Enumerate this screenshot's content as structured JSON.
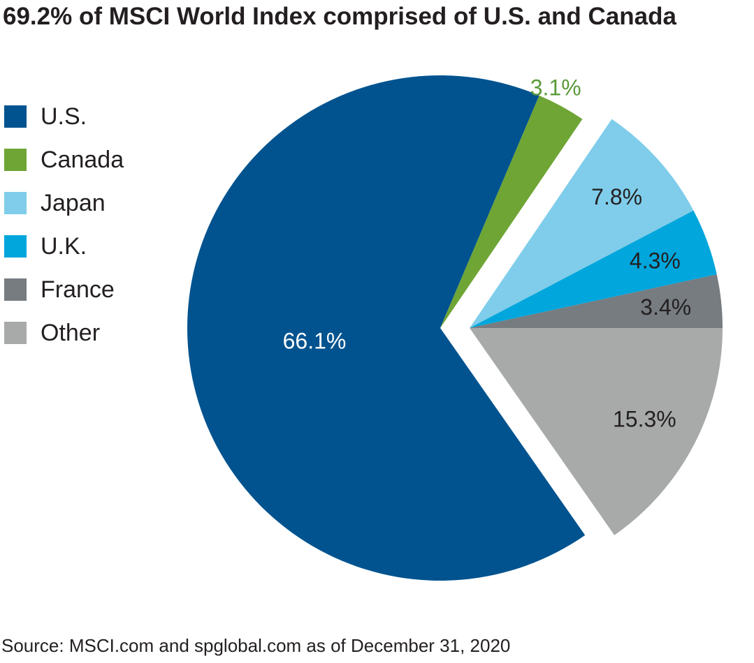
{
  "title": "69.2% of MSCI World Index comprised of U.S. and Canada",
  "source": "Source: MSCI.com and spglobal.com as of December 31, 2020",
  "chart_data": {
    "type": "pie",
    "title": "69.2% of MSCI World Index comprised of U.S. and Canada",
    "legend_position": "left",
    "slices": [
      {
        "name": "U.S.",
        "value": 66.1,
        "label": "66.1%",
        "color": "#00538f",
        "label_color": "#ffffff",
        "exploded": false
      },
      {
        "name": "Canada",
        "value": 3.1,
        "label": "3.1%",
        "color": "#6ea535",
        "label_color": "#5a9a3a",
        "exploded": false,
        "label_outside": true
      },
      {
        "name": "Japan",
        "value": 7.8,
        "label": "7.8%",
        "color": "#7fcdea",
        "label_color": "#231f20",
        "exploded": true
      },
      {
        "name": "U.K.",
        "value": 4.3,
        "label": "4.3%",
        "color": "#00a6dc",
        "label_color": "#231f20",
        "exploded": true
      },
      {
        "name": "France",
        "value": 3.4,
        "label": "3.4%",
        "color": "#767c80",
        "label_color": "#231f20",
        "exploded": true
      },
      {
        "name": "Other",
        "value": 15.3,
        "label": "15.3%",
        "color": "#a7aaa9",
        "label_color": "#231f20",
        "exploded": true
      }
    ]
  }
}
